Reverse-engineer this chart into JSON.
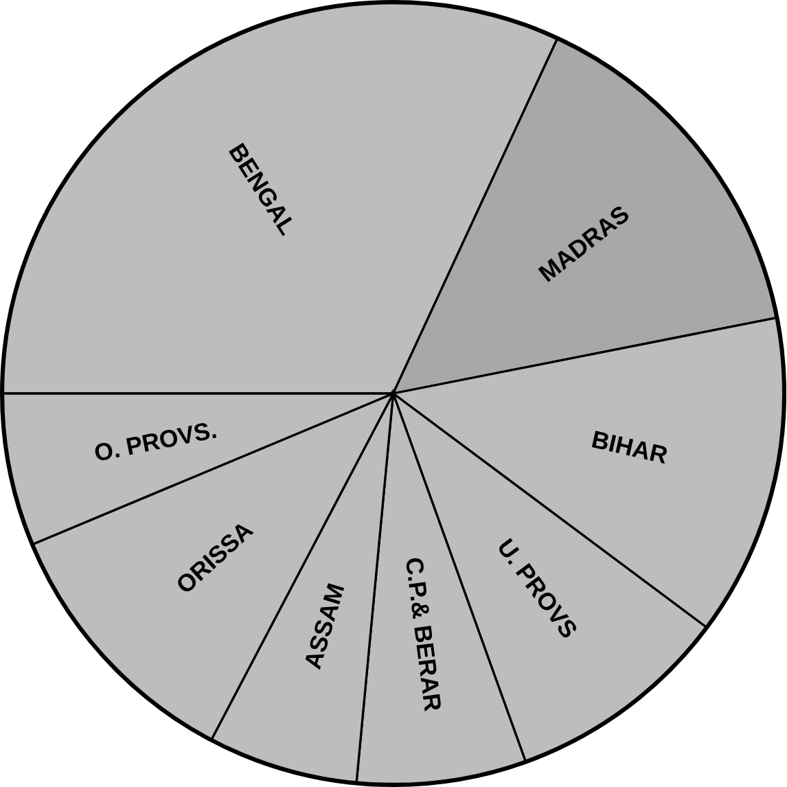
{
  "chart_data": {
    "type": "pie",
    "categories": [
      "BENGAL",
      "MADRAS",
      "BIHAR",
      "U. PROVS",
      "C.P.& BERAR",
      "ASSAM",
      "ORISSA",
      "O. PROVS."
    ],
    "values": [
      31.9,
      15.0,
      13.3,
      9.3,
      7.0,
      6.2,
      11.0,
      6.3
    ],
    "colors": [
      "#bdbdbd",
      "#a8a8a8",
      "#bdbdbd",
      "#bdbdbd",
      "#bdbdbd",
      "#bdbdbd",
      "#bdbdbd",
      "#bdbdbd"
    ]
  }
}
